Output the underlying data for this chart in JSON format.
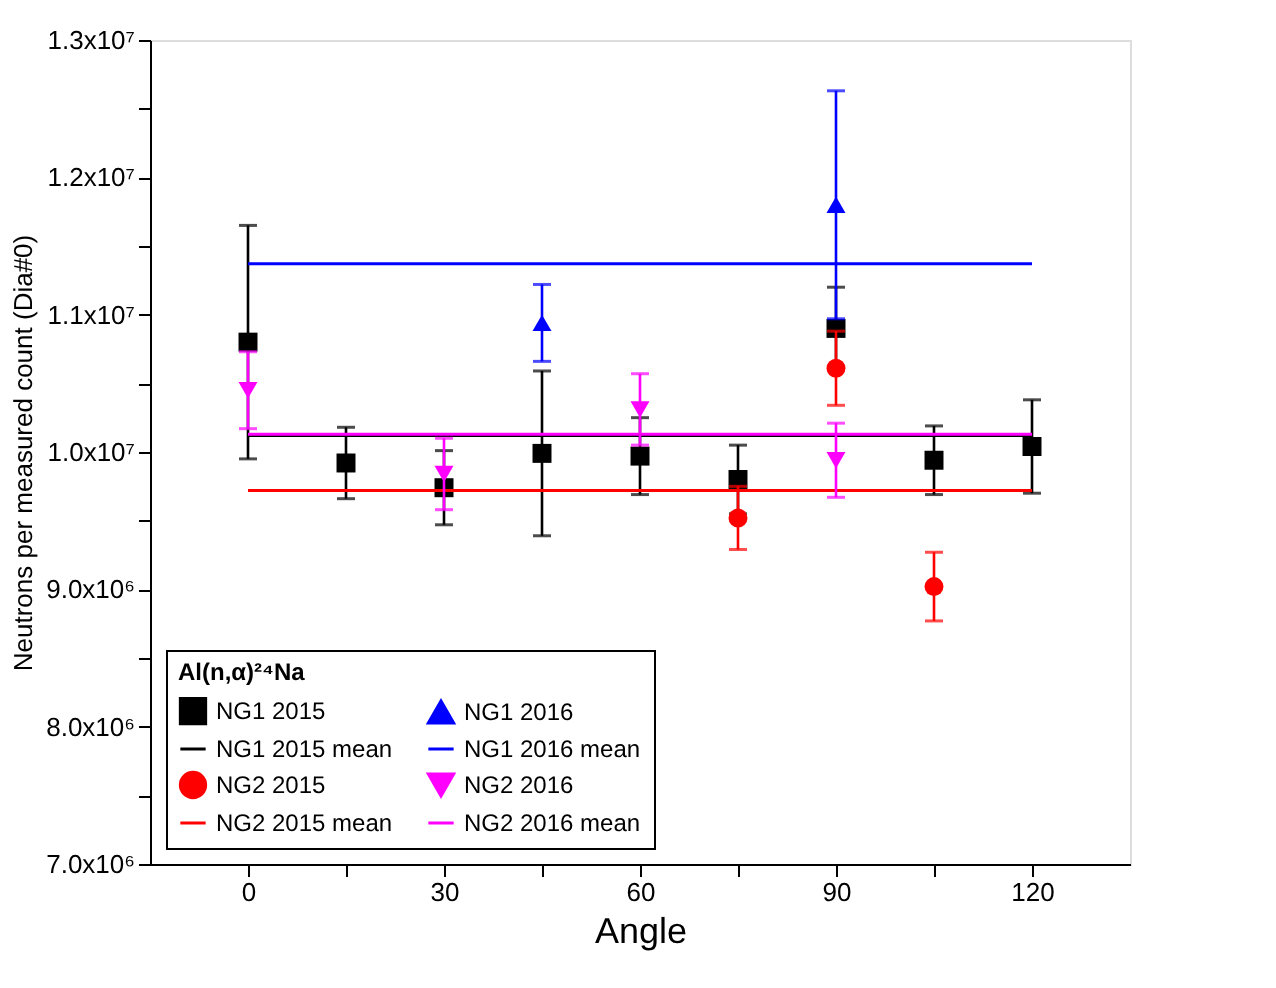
{
  "chart_data": {
    "type": "scatter",
    "xlabel": "Angle",
    "ylabel": "Neutrons per measured count (Dia#0)",
    "legend_title": "Al(n,α)²⁴Na",
    "legend": "bottom left",
    "grid": false,
    "xlim": [
      -15,
      135
    ],
    "xticks": [
      0,
      {
        "value": 15,
        "label": null
      },
      30,
      {
        "value": 45,
        "label": null
      },
      60,
      {
        "value": 75,
        "label": null
      },
      90,
      {
        "value": 105,
        "label": null
      },
      120
    ],
    "ylim": [
      7000000,
      13000000
    ],
    "yticks": [
      {
        "value": 7000000,
        "label": "7.0x10⁶"
      },
      {
        "value": 7500000,
        "label": null
      },
      {
        "value": 8000000,
        "label": "8.0x10⁶"
      },
      {
        "value": 8500000,
        "label": null
      },
      {
        "value": 9000000,
        "label": "9.0x10⁶"
      },
      {
        "value": 9500000,
        "label": null
      },
      {
        "value": 10000000,
        "label": "1.0x10⁷"
      },
      {
        "value": 10500000,
        "label": null
      },
      {
        "value": 11000000,
        "label": "1.1x10⁷"
      },
      {
        "value": 11500000,
        "label": null
      },
      {
        "value": 12000000,
        "label": "1.2x10⁷"
      },
      {
        "value": 12500000,
        "label": null
      },
      {
        "value": 13000000,
        "label": "1.3x10⁷"
      }
    ],
    "series": [
      {
        "name": "NG1 2015",
        "marker": "square",
        "color": "#000000",
        "x": [
          0,
          15,
          30,
          45,
          60,
          75,
          90,
          105,
          120
        ],
        "values": [
          10800000,
          9920000,
          9740000,
          9990000,
          9970000,
          9800000,
          10900000,
          9940000,
          10040000
        ],
        "errors": [
          850000,
          260000,
          270000,
          600000,
          280000,
          250000,
          300000,
          250000,
          340000
        ]
      },
      {
        "name": "NG1 2015 mean",
        "type": "line",
        "line_style": "solid",
        "color": "#000000",
        "x": [
          0,
          120
        ],
        "values": [
          10120000,
          10120000
        ]
      },
      {
        "name": "NG2 2015",
        "marker": "circle",
        "color": "#ff0000",
        "x": [
          75,
          90,
          105
        ],
        "values": [
          9520000,
          10610000,
          9020000
        ],
        "errors": [
          230000,
          270000,
          250000
        ]
      },
      {
        "name": "NG2 2015 mean",
        "type": "line",
        "line_style": "solid",
        "color": "#ff0000",
        "x": [
          0,
          120
        ],
        "values": [
          9720000,
          9720000
        ]
      },
      {
        "name": "NG1 2016",
        "marker": "triangle",
        "color": "#0000ff",
        "x": [
          45,
          90
        ],
        "values": [
          10940000,
          11800000
        ],
        "errors": [
          280000,
          830000
        ]
      },
      {
        "name": "NG1 2016 mean",
        "type": "line",
        "line_style": "solid",
        "color": "#0000ff",
        "x": [
          0,
          120
        ],
        "values": [
          11370000,
          11370000
        ]
      },
      {
        "name": "NG2 2016",
        "marker": "triangle-down",
        "color": "#ff00ff",
        "x": [
          0,
          30,
          60,
          90
        ],
        "values": [
          10450000,
          9840000,
          10310000,
          9940000
        ],
        "errors": [
          280000,
          260000,
          260000,
          270000
        ]
      },
      {
        "name": "NG2 2016 mean",
        "type": "line",
        "line_style": "solid",
        "color": "#ff00ff",
        "x": [
          0,
          120
        ],
        "values": [
          10130000,
          10130000
        ]
      }
    ]
  }
}
